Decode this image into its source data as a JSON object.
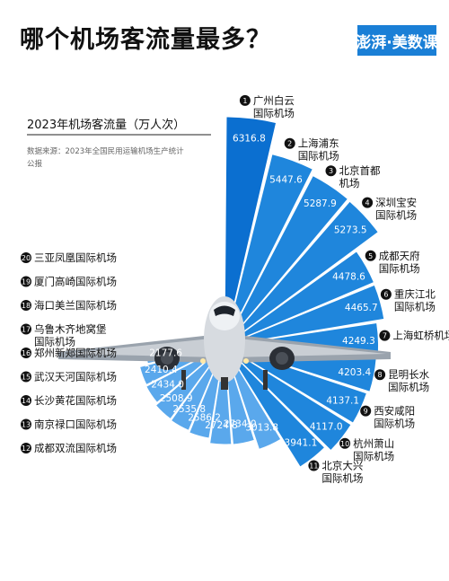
{
  "header": {
    "title": "哪个机场客流量最多？",
    "logo": "澎湃·美数课"
  },
  "legend": {
    "title": "2023年机场客流量（万人次）",
    "source_line1": "数据来源：2023年全国民用运输机场生产统计",
    "source_line2": "公报"
  },
  "colors": {
    "accent": "#1a7fd6",
    "bar_light": "#5aa8ec",
    "bar_dark": "#0b6fd0"
  },
  "chart_data": {
    "type": "bar",
    "subtype": "radial",
    "title": "哪个机场客流量最多？",
    "value_label": "2023年机场客流量（万人次）",
    "categories": [
      "广州白云国际机场",
      "上海浦东国际机场",
      "北京首都机场",
      "深圳宝安国际机场",
      "成都天府国际机场",
      "重庆江北国际机场",
      "上海虹桥机场",
      "昆明长水国际机场",
      "西安咸阳国际机场",
      "杭州萧山国际机场",
      "北京大兴国际机场",
      "成都双流国际机场",
      "南京禄口国际机场",
      "长沙黄花国际机场",
      "武汉天河国际机场",
      "郑州新郑国际机场",
      "乌鲁木齐地窝堡国际机场",
      "海口美兰国际机场",
      "厦门高崎国际机场",
      "三亚凤凰国际机场"
    ],
    "ranks": [
      1,
      2,
      3,
      4,
      5,
      6,
      7,
      8,
      9,
      10,
      11,
      12,
      13,
      14,
      15,
      16,
      17,
      18,
      19,
      20
    ],
    "values": [
      6316.8,
      5447.6,
      5287.9,
      5273.5,
      4478.6,
      4465.7,
      4249.3,
      4203.4,
      4137.1,
      4117.0,
      3941.1,
      3013.8,
      2734.0,
      2724.8,
      2586.2,
      2535.8,
      2508.9,
      2434.0,
      2410.4,
      2177.6
    ],
    "value_labels": [
      "6316.8",
      "5447.6",
      "5287.9",
      "5273.5",
      "4478.6",
      "4465.7",
      "4249.3",
      "4203.4",
      "4137.1",
      "4117.0",
      "3941.1",
      "3013.8",
      "2734.0",
      "2724.8",
      "2586.2",
      "2535.8",
      "2508.9",
      "2434.0",
      "2410.4",
      "2177.6"
    ]
  },
  "labels": [
    [
      "广州白云",
      "国际机场"
    ],
    [
      "上海浦东",
      "国际机场"
    ],
    [
      "北京首都",
      "机场"
    ],
    [
      "深圳宝安",
      "国际机场"
    ],
    [
      "成都天府",
      "国际机场"
    ],
    [
      "重庆江北",
      "国际机场"
    ],
    [
      "上海虹桥机场"
    ],
    [
      "昆明长水",
      "国际机场"
    ],
    [
      "西安咸阳",
      "国际机场"
    ],
    [
      "杭州萧山",
      "国际机场"
    ],
    [
      "北京大兴",
      "国际机场"
    ],
    [
      "成都双流国际机场"
    ],
    [
      "南京禄口国际机场"
    ],
    [
      "长沙黄花国际机场"
    ],
    [
      "武汉天河国际机场"
    ],
    [
      "郑州新郑国际机场"
    ],
    [
      "乌鲁木齐地窝堡",
      "国际机场"
    ],
    [
      "海口美兰国际机场"
    ],
    [
      "厦门高崎国际机场"
    ],
    [
      "三亚凤凰国际机场"
    ]
  ]
}
